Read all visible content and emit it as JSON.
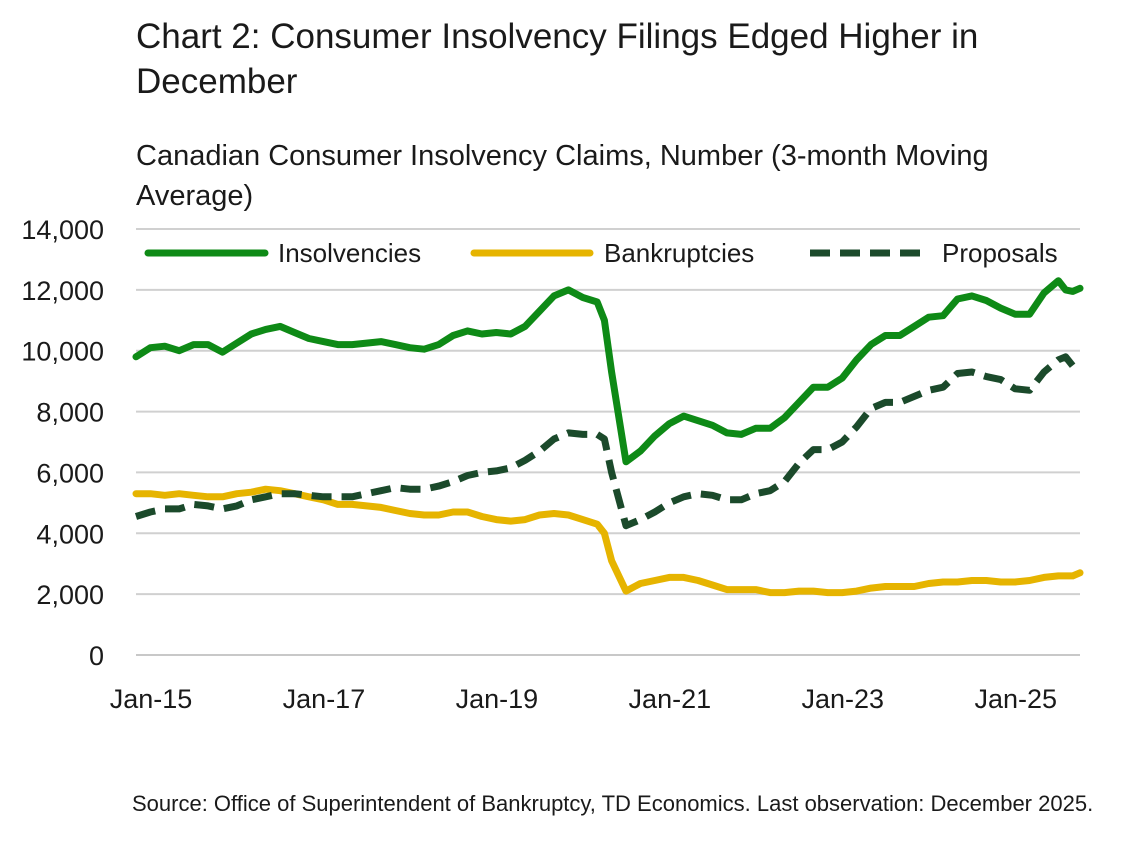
{
  "chart_title": "Chart 2: Consumer Insolvency Filings Edged Higher in December",
  "chart_subtitle": "Canadian Consumer Insolvency Claims, Number (3-month Moving Average)",
  "source": "Source: Office of Superintendent of Bankruptcy, TD Economics. Last observation: December 2025.",
  "chart_data": {
    "type": "line",
    "title": "Chart 2: Consumer Insolvency Filings Edged Higher in December",
    "subtitle": "Canadian Consumer Insolvency Claims, Number (3-month Moving Average)",
    "xlabel": "",
    "ylabel": "",
    "x_range": [
      "Jan-15",
      "Dec-25"
    ],
    "ylim": [
      0,
      14000
    ],
    "y_ticks": [
      "14,000",
      "12,000",
      "10,000",
      "8,000",
      "6,000",
      "4,000",
      "2,000",
      "0"
    ],
    "x_ticks": [
      "Jan-15",
      "Jan-17",
      "Jan-19",
      "Jan-21",
      "Jan-23",
      "Jan-25"
    ],
    "grid": "horizontal",
    "legend_position": "top",
    "series": [
      {
        "name": "Insolvencies",
        "color": "#0e8a16",
        "style": "solid",
        "points": [
          [
            "Jan-15",
            9800
          ],
          [
            "Mar-15",
            10100
          ],
          [
            "May-15",
            10150
          ],
          [
            "Jul-15",
            10000
          ],
          [
            "Sep-15",
            10200
          ],
          [
            "Nov-15",
            10200
          ],
          [
            "Jan-16",
            9950
          ],
          [
            "Mar-16",
            10250
          ],
          [
            "May-16",
            10550
          ],
          [
            "Jul-16",
            10700
          ],
          [
            "Sep-16",
            10800
          ],
          [
            "Nov-16",
            10600
          ],
          [
            "Jan-17",
            10400
          ],
          [
            "Mar-17",
            10300
          ],
          [
            "May-17",
            10200
          ],
          [
            "Jul-17",
            10200
          ],
          [
            "Sep-17",
            10250
          ],
          [
            "Nov-17",
            10300
          ],
          [
            "Jan-18",
            10200
          ],
          [
            "Mar-18",
            10100
          ],
          [
            "May-18",
            10050
          ],
          [
            "Jul-18",
            10200
          ],
          [
            "Sep-18",
            10500
          ],
          [
            "Nov-18",
            10650
          ],
          [
            "Jan-19",
            10550
          ],
          [
            "Mar-19",
            10600
          ],
          [
            "May-19",
            10550
          ],
          [
            "Jul-19",
            10800
          ],
          [
            "Sep-19",
            11300
          ],
          [
            "Nov-19",
            11800
          ],
          [
            "Jan-20",
            12000
          ],
          [
            "Mar-20",
            11750
          ],
          [
            "May-20",
            11600
          ],
          [
            "Jun-20",
            11000
          ],
          [
            "Jul-20",
            9300
          ],
          [
            "Sep-20",
            6350
          ],
          [
            "Nov-20",
            6700
          ],
          [
            "Jan-21",
            7200
          ],
          [
            "Mar-21",
            7600
          ],
          [
            "May-21",
            7850
          ],
          [
            "Jul-21",
            7700
          ],
          [
            "Sep-21",
            7550
          ],
          [
            "Nov-21",
            7300
          ],
          [
            "Jan-22",
            7250
          ],
          [
            "Mar-22",
            7450
          ],
          [
            "May-22",
            7450
          ],
          [
            "Jul-22",
            7800
          ],
          [
            "Sep-22",
            8300
          ],
          [
            "Nov-22",
            8800
          ],
          [
            "Jan-23",
            8800
          ],
          [
            "Mar-23",
            9100
          ],
          [
            "May-23",
            9700
          ],
          [
            "Jul-23",
            10200
          ],
          [
            "Sep-23",
            10500
          ],
          [
            "Nov-23",
            10500
          ],
          [
            "Jan-24",
            10800
          ],
          [
            "Mar-24",
            11100
          ],
          [
            "May-24",
            11150
          ],
          [
            "Jul-24",
            11700
          ],
          [
            "Sep-24",
            11800
          ],
          [
            "Nov-24",
            11650
          ],
          [
            "Jan-25",
            11400
          ],
          [
            "Mar-25",
            11200
          ],
          [
            "May-25",
            11200
          ],
          [
            "Jul-25",
            11900
          ],
          [
            "Sep-25",
            12300
          ],
          [
            "Oct-25",
            12000
          ],
          [
            "Nov-25",
            11950
          ],
          [
            "Dec-25",
            12050
          ]
        ]
      },
      {
        "name": "Bankruptcies",
        "color": "#e6b400",
        "style": "solid",
        "points": [
          [
            "Jan-15",
            5300
          ],
          [
            "Mar-15",
            5300
          ],
          [
            "May-15",
            5250
          ],
          [
            "Jul-15",
            5300
          ],
          [
            "Sep-15",
            5250
          ],
          [
            "Nov-15",
            5200
          ],
          [
            "Jan-16",
            5200
          ],
          [
            "Mar-16",
            5300
          ],
          [
            "May-16",
            5350
          ],
          [
            "Jul-16",
            5450
          ],
          [
            "Sep-16",
            5400
          ],
          [
            "Nov-16",
            5300
          ],
          [
            "Jan-17",
            5200
          ],
          [
            "Mar-17",
            5100
          ],
          [
            "May-17",
            4950
          ],
          [
            "Jul-17",
            4950
          ],
          [
            "Sep-17",
            4900
          ],
          [
            "Nov-17",
            4850
          ],
          [
            "Jan-18",
            4750
          ],
          [
            "Mar-18",
            4650
          ],
          [
            "May-18",
            4600
          ],
          [
            "Jul-18",
            4600
          ],
          [
            "Sep-18",
            4700
          ],
          [
            "Nov-18",
            4700
          ],
          [
            "Jan-19",
            4550
          ],
          [
            "Mar-19",
            4450
          ],
          [
            "May-19",
            4400
          ],
          [
            "Jul-19",
            4450
          ],
          [
            "Sep-19",
            4600
          ],
          [
            "Nov-19",
            4650
          ],
          [
            "Jan-20",
            4600
          ],
          [
            "Mar-20",
            4450
          ],
          [
            "May-20",
            4300
          ],
          [
            "Jun-20",
            4000
          ],
          [
            "Jul-20",
            3100
          ],
          [
            "Sep-20",
            2100
          ],
          [
            "Nov-20",
            2350
          ],
          [
            "Jan-21",
            2450
          ],
          [
            "Mar-21",
            2550
          ],
          [
            "May-21",
            2550
          ],
          [
            "Jul-21",
            2450
          ],
          [
            "Sep-21",
            2300
          ],
          [
            "Nov-21",
            2150
          ],
          [
            "Jan-22",
            2150
          ],
          [
            "Mar-22",
            2150
          ],
          [
            "May-22",
            2050
          ],
          [
            "Jul-22",
            2050
          ],
          [
            "Sep-22",
            2100
          ],
          [
            "Nov-22",
            2100
          ],
          [
            "Jan-23",
            2050
          ],
          [
            "Mar-23",
            2050
          ],
          [
            "May-23",
            2100
          ],
          [
            "Jul-23",
            2200
          ],
          [
            "Sep-23",
            2250
          ],
          [
            "Nov-23",
            2250
          ],
          [
            "Jan-24",
            2250
          ],
          [
            "Mar-24",
            2350
          ],
          [
            "May-24",
            2400
          ],
          [
            "Jul-24",
            2400
          ],
          [
            "Sep-24",
            2450
          ],
          [
            "Nov-24",
            2450
          ],
          [
            "Jan-25",
            2400
          ],
          [
            "Mar-25",
            2400
          ],
          [
            "May-25",
            2450
          ],
          [
            "Jul-25",
            2550
          ],
          [
            "Sep-25",
            2600
          ],
          [
            "Nov-25",
            2600
          ],
          [
            "Dec-25",
            2700
          ]
        ]
      },
      {
        "name": "Proposals",
        "color": "#1b4a2b",
        "style": "dashed",
        "points": [
          [
            "Jan-15",
            4550
          ],
          [
            "Mar-15",
            4700
          ],
          [
            "May-15",
            4800
          ],
          [
            "Jul-15",
            4800
          ],
          [
            "Sep-15",
            4950
          ],
          [
            "Nov-15",
            4900
          ],
          [
            "Jan-16",
            4800
          ],
          [
            "Mar-16",
            4900
          ],
          [
            "May-16",
            5100
          ],
          [
            "Jul-16",
            5200
          ],
          [
            "Sep-16",
            5300
          ],
          [
            "Nov-16",
            5300
          ],
          [
            "Jan-17",
            5250
          ],
          [
            "Mar-17",
            5200
          ],
          [
            "May-17",
            5200
          ],
          [
            "Jul-17",
            5200
          ],
          [
            "Sep-17",
            5300
          ],
          [
            "Nov-17",
            5400
          ],
          [
            "Jan-18",
            5500
          ],
          [
            "Mar-18",
            5450
          ],
          [
            "May-18",
            5450
          ],
          [
            "Jul-18",
            5550
          ],
          [
            "Sep-18",
            5700
          ],
          [
            "Nov-18",
            5900
          ],
          [
            "Jan-19",
            6000
          ],
          [
            "Mar-19",
            6050
          ],
          [
            "May-19",
            6150
          ],
          [
            "Jul-19",
            6400
          ],
          [
            "Sep-19",
            6700
          ],
          [
            "Nov-19",
            7100
          ],
          [
            "Jan-20",
            7300
          ],
          [
            "Mar-20",
            7250
          ],
          [
            "May-20",
            7250
          ],
          [
            "Jun-20",
            7100
          ],
          [
            "Jul-20",
            6000
          ],
          [
            "Sep-20",
            4250
          ],
          [
            "Nov-20",
            4450
          ],
          [
            "Jan-21",
            4700
          ],
          [
            "Mar-21",
            5000
          ],
          [
            "May-21",
            5200
          ],
          [
            "Jul-21",
            5300
          ],
          [
            "Sep-21",
            5250
          ],
          [
            "Nov-21",
            5100
          ],
          [
            "Jan-22",
            5100
          ],
          [
            "Mar-22",
            5300
          ],
          [
            "May-22",
            5400
          ],
          [
            "Jul-22",
            5700
          ],
          [
            "Sep-22",
            6300
          ],
          [
            "Nov-22",
            6750
          ],
          [
            "Jan-23",
            6750
          ],
          [
            "Mar-23",
            7000
          ],
          [
            "May-23",
            7500
          ],
          [
            "Jul-23",
            8100
          ],
          [
            "Sep-23",
            8300
          ],
          [
            "Nov-23",
            8300
          ],
          [
            "Jan-24",
            8500
          ],
          [
            "Mar-24",
            8700
          ],
          [
            "May-24",
            8800
          ],
          [
            "Jul-24",
            9250
          ],
          [
            "Sep-24",
            9300
          ],
          [
            "Nov-24",
            9150
          ],
          [
            "Jan-25",
            9050
          ],
          [
            "Mar-25",
            8750
          ],
          [
            "May-25",
            8700
          ],
          [
            "Jul-25",
            9300
          ],
          [
            "Sep-25",
            9700
          ],
          [
            "Oct-25",
            9800
          ],
          [
            "Nov-25",
            9500
          ],
          [
            "Dec-25",
            9300
          ]
        ]
      }
    ]
  }
}
